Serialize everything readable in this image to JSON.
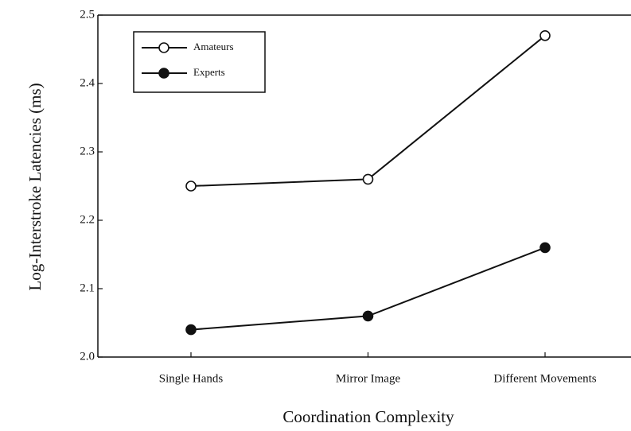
{
  "chart_data": {
    "type": "line",
    "xlabel": "Coordination Complexity",
    "ylabel": "Log-Interstroke Latencies (ms)",
    "categories": [
      "Single Hands",
      "Mirror Image",
      "Different Movements"
    ],
    "series": [
      {
        "name": "Amateurs",
        "color": "#111111",
        "marker": "open",
        "values": [
          2.25,
          2.26,
          2.47
        ]
      },
      {
        "name": "Experts",
        "color": "#111111",
        "marker": "filled",
        "values": [
          2.04,
          2.06,
          2.16
        ]
      }
    ],
    "ylim": [
      2.0,
      2.5
    ],
    "yticks": [
      {
        "value": 2.0,
        "label": "2.0"
      },
      2.1,
      2.2,
      2.3,
      2.4,
      2.5
    ],
    "legend": "upper left"
  }
}
